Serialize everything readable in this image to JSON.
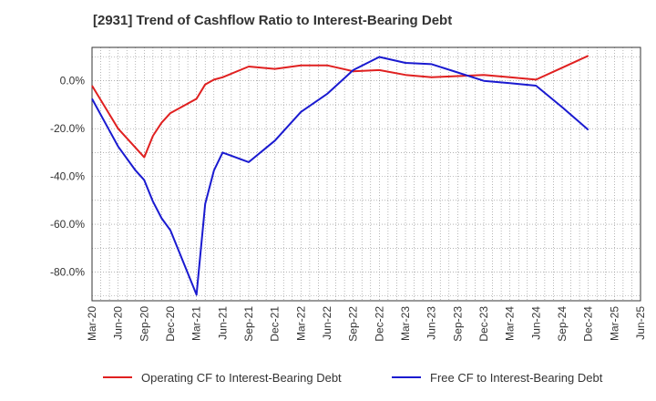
{
  "chart_data": {
    "type": "line",
    "title": "[2931]  Trend of Cashflow Ratio to Interest-Bearing Debt",
    "xlabel": "",
    "ylabel": "",
    "ylim": [
      -92,
      14
    ],
    "yticks": [
      0,
      -20,
      -40,
      -60,
      -80
    ],
    "ytick_labels": [
      "0.0%",
      "-20.0%",
      "-40.0%",
      "-60.0%",
      "-80.0%"
    ],
    "x_tick_labels": [
      "Mar-20",
      "Jun-20",
      "Sep-20",
      "Dec-20",
      "Mar-21",
      "Jun-21",
      "Sep-21",
      "Dec-21",
      "Mar-22",
      "Jun-22",
      "Sep-22",
      "Dec-22",
      "Mar-23",
      "Jun-23",
      "Sep-23",
      "Dec-23",
      "Mar-24",
      "Jun-24",
      "Sep-24",
      "Dec-24",
      "Mar-25",
      "Jun-25"
    ],
    "grid": true,
    "legend_position": "bottom",
    "series": [
      {
        "name": "Operating CF to Interest-Bearing Debt",
        "color": "#e02020",
        "points": [
          [
            "Mar-20",
            -2
          ],
          [
            "Jun-20",
            -20
          ],
          [
            "Sep-20",
            -32
          ],
          [
            "Oct-20",
            -23
          ],
          [
            "Nov-20",
            -17.5
          ],
          [
            "Dec-20",
            -13.5
          ],
          [
            "Mar-21",
            -7.5
          ],
          [
            "Apr-21",
            -1.5
          ],
          [
            "May-21",
            0.5
          ],
          [
            "Jun-21",
            1.5
          ],
          [
            "Sep-21",
            6
          ],
          [
            "Dec-21",
            5
          ],
          [
            "Mar-22",
            6.5
          ],
          [
            "Jun-22",
            6.5
          ],
          [
            "Sep-22",
            4
          ],
          [
            "Dec-22",
            4.5
          ],
          [
            "Mar-23",
            2.5
          ],
          [
            "Jun-23",
            1.5
          ],
          [
            "Sep-23",
            2
          ],
          [
            "Dec-23",
            2.5
          ],
          [
            "Mar-24",
            1.5
          ],
          [
            "Jun-24",
            0.5
          ],
          [
            "Sep-24",
            5.5
          ],
          [
            "Dec-24",
            10.5
          ]
        ]
      },
      {
        "name": "Free CF to Interest-Bearing Debt",
        "color": "#1a1ad0",
        "points": [
          [
            "Mar-20",
            -7.5
          ],
          [
            "Jun-20",
            -27.5
          ],
          [
            "Aug-20",
            -37.5
          ],
          [
            "Sep-20",
            -41.5
          ],
          [
            "Oct-20",
            -50.5
          ],
          [
            "Nov-20",
            -57.5
          ],
          [
            "Dec-20",
            -62.5
          ],
          [
            "Mar-21",
            -89.5
          ],
          [
            "Apr-21",
            -51.5
          ],
          [
            "May-21",
            -37.5
          ],
          [
            "Jun-21",
            -30
          ],
          [
            "Sep-21",
            -34
          ],
          [
            "Dec-21",
            -25
          ],
          [
            "Mar-22",
            -13
          ],
          [
            "Jun-22",
            -5.5
          ],
          [
            "Sep-22",
            4.5
          ],
          [
            "Dec-22",
            10
          ],
          [
            "Mar-23",
            7.5
          ],
          [
            "Jun-23",
            7
          ],
          [
            "Sep-23",
            3.5
          ],
          [
            "Dec-23",
            0
          ],
          [
            "Mar-24",
            -1
          ],
          [
            "Jun-24",
            -2
          ],
          [
            "Sep-24",
            -11
          ],
          [
            "Dec-24",
            -20.5
          ]
        ]
      }
    ]
  }
}
